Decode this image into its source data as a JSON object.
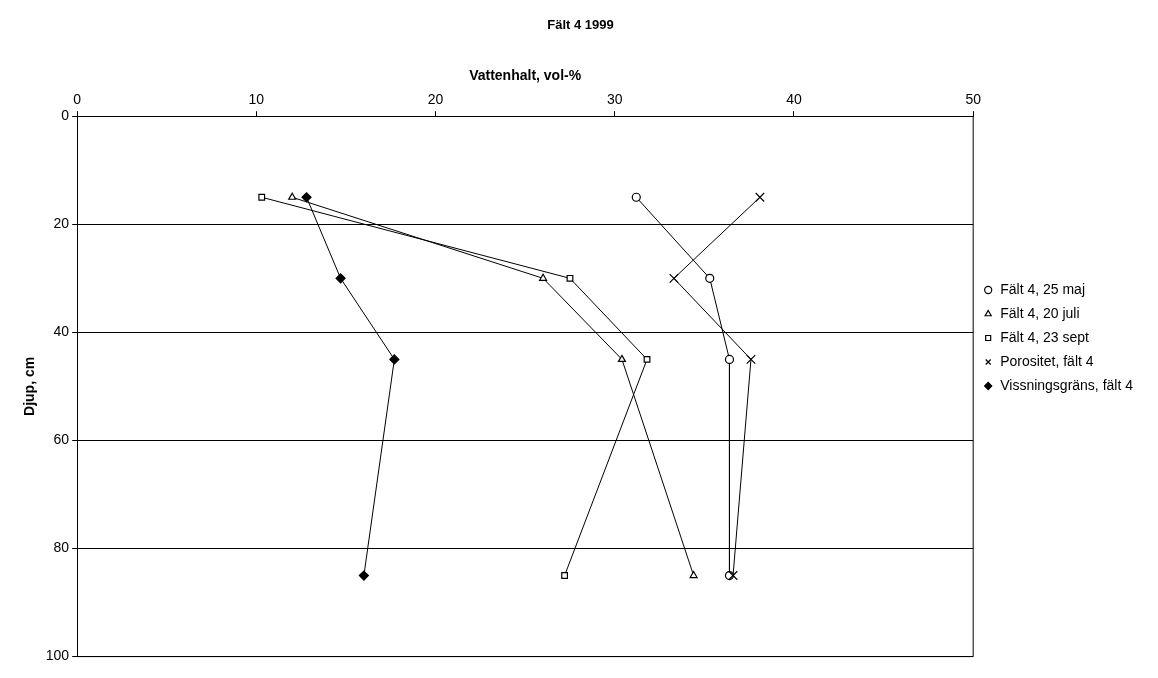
{
  "chart_data": {
    "type": "line",
    "title": "Fält 4 1999",
    "xlabel": "Vattenhalt, vol-%",
    "ylabel": "Djup, cm",
    "xlim": [
      0,
      50
    ],
    "xticks": [
      0,
      10,
      20,
      30,
      40,
      50
    ],
    "ylim": [
      100,
      0
    ],
    "yticks": [
      0,
      20,
      40,
      60,
      80,
      100
    ],
    "grid": "y",
    "legend": "right",
    "line_style": "solid",
    "series": [
      {
        "name": "Fält 4, 25 maj",
        "color": "#000000",
        "marker": "circle",
        "x": [
          31.2,
          35.3,
          36.4,
          36.4
        ],
        "values": [
          15,
          30,
          45,
          85
        ]
      },
      {
        "name": "Fält 4, 20 juli",
        "color": "#000000",
        "marker": "triangle",
        "x": [
          12.0,
          26.0,
          30.4,
          34.4
        ],
        "values": [
          15,
          30,
          45,
          85
        ]
      },
      {
        "name": "Fält 4, 23 sept",
        "color": "#000000",
        "marker": "square",
        "x": [
          10.3,
          27.5,
          31.8,
          27.2
        ],
        "values": [
          15,
          30,
          45,
          85
        ]
      },
      {
        "name": "Porositet, fält 4",
        "color": "#000000",
        "marker": "cross",
        "x": [
          38.1,
          33.3,
          37.6,
          36.6
        ],
        "values": [
          15,
          30,
          45,
          85
        ]
      },
      {
        "name": "Vissningsgräns, fält 4",
        "color": "#000000",
        "marker": "diamond",
        "x": [
          12.8,
          14.7,
          17.7,
          16.0
        ],
        "values": [
          15,
          30,
          45,
          85
        ]
      }
    ]
  }
}
